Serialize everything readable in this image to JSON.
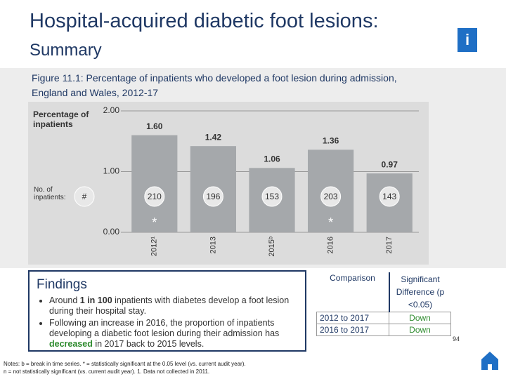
{
  "header": {
    "title": "Hospital-acquired diabetic foot lesions:",
    "subtitle": "Summary",
    "icon": "i"
  },
  "chart_data": {
    "type": "bar",
    "title": "Figure 11.1: Percentage of inpatients who developed a foot lesion during admission,",
    "subtitle": "England and Wales, 2012-17",
    "y_label": "Percentage of inpatients",
    "categories": [
      "2012¹",
      "2013",
      "2015ᵇ",
      "2016",
      "2017"
    ],
    "values": [
      1.6,
      1.42,
      1.06,
      1.36,
      0.97
    ],
    "value_labels": [
      "1.60",
      "1.42",
      "1.06",
      "1.36",
      "0.97"
    ],
    "color": "#a5a8ab",
    "ylim": [
      0,
      2
    ],
    "yticks": [
      {
        "value": 0,
        "label": "0.00"
      },
      {
        "value": 1,
        "label": "1.00"
      },
      {
        "value": 2,
        "label": "2.00"
      }
    ],
    "grid": true,
    "n_label": "No. of inpatients:",
    "n_symbol": "#",
    "counts": [
      210,
      196,
      153,
      203,
      143
    ],
    "significance": [
      "*",
      null,
      null,
      "*",
      null
    ]
  },
  "findings": {
    "title": "Findings",
    "bullets": [
      [
        "Around ",
        "1 in 100",
        " inpatients with diabetes develop a foot lesion during their hospital stay."
      ],
      [
        "Following an increase in 2016, the proportion of inpatients developing a diabetic foot lesion during their admission has ",
        "decreased",
        " in 2017 back to 2015 levels."
      ]
    ]
  },
  "table": {
    "header": [
      "Comparison",
      "Significant Difference (p <0.05)"
    ],
    "rows": [
      [
        "2012 to 2017",
        "Down"
      ],
      [
        "2016 to 2017",
        "Down"
      ]
    ]
  },
  "notes": [
    "Notes: b = break in time series. * = statistically significant at the 0.05 level (vs. current audit year).",
    "n = not statistically significant (vs. current audit year). 1. Data not collected in 2011."
  ],
  "page_number": "94"
}
